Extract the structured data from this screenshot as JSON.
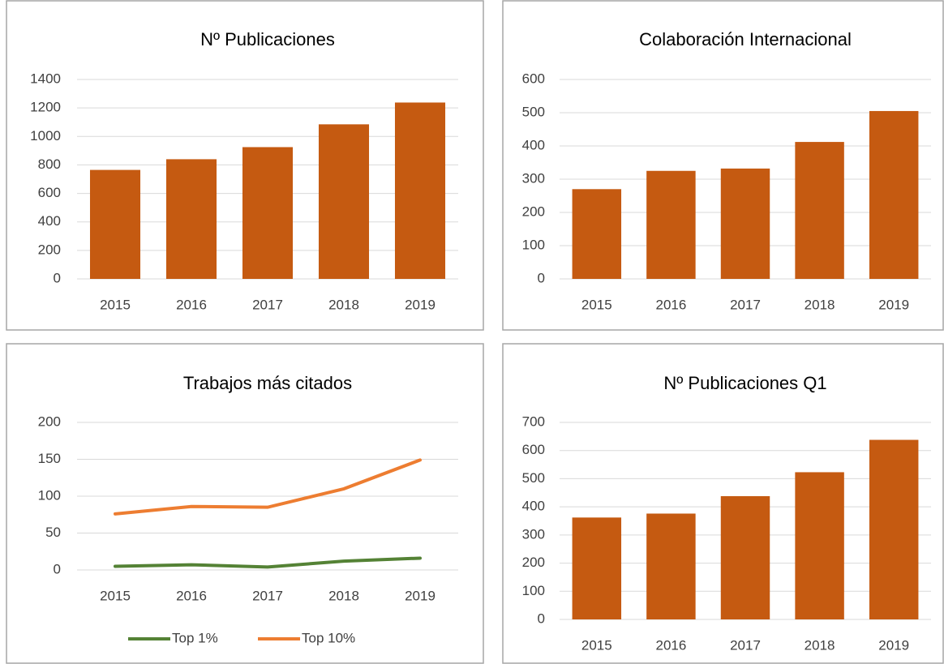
{
  "chart_data": [
    {
      "type": "bar",
      "title": "Nº Publicaciones",
      "categories": [
        "2015",
        "2016",
        "2017",
        "2018",
        "2019"
      ],
      "values": [
        765,
        840,
        925,
        1085,
        1238
      ],
      "color": "#c55a11",
      "ylim": [
        0,
        1400
      ],
      "yticks": [
        0,
        200,
        400,
        600,
        800,
        1000,
        1200,
        1400
      ],
      "grid": true
    },
    {
      "type": "bar",
      "title": "Colaboración Internacional",
      "categories": [
        "2015",
        "2016",
        "2017",
        "2018",
        "2019"
      ],
      "values": [
        270,
        325,
        332,
        412,
        505
      ],
      "color": "#c55a11",
      "ylim": [
        0,
        600
      ],
      "yticks": [
        0,
        100,
        200,
        300,
        400,
        500,
        600
      ],
      "grid": true
    },
    {
      "type": "line",
      "title": "Trabajos más citados",
      "categories": [
        "2015",
        "2016",
        "2017",
        "2018",
        "2019"
      ],
      "series": [
        {
          "name": "Top 1%",
          "color": "#548235",
          "values": [
            5,
            7,
            4,
            12,
            16
          ]
        },
        {
          "name": "Top 10%",
          "color": "#ed7d31",
          "values": [
            76,
            86,
            85,
            110,
            149
          ]
        }
      ],
      "ylim": [
        0,
        200
      ],
      "yticks": [
        0,
        50,
        100,
        150,
        200
      ],
      "grid": true,
      "legend": "bottom"
    },
    {
      "type": "bar",
      "title": "Nº Publicaciones Q1",
      "categories": [
        "2015",
        "2016",
        "2017",
        "2018",
        "2019"
      ],
      "values": [
        362,
        376,
        438,
        523,
        638
      ],
      "color": "#c55a11",
      "ylim": [
        0,
        700
      ],
      "yticks": [
        0,
        100,
        200,
        300,
        400,
        500,
        600,
        700
      ],
      "grid": true
    }
  ]
}
